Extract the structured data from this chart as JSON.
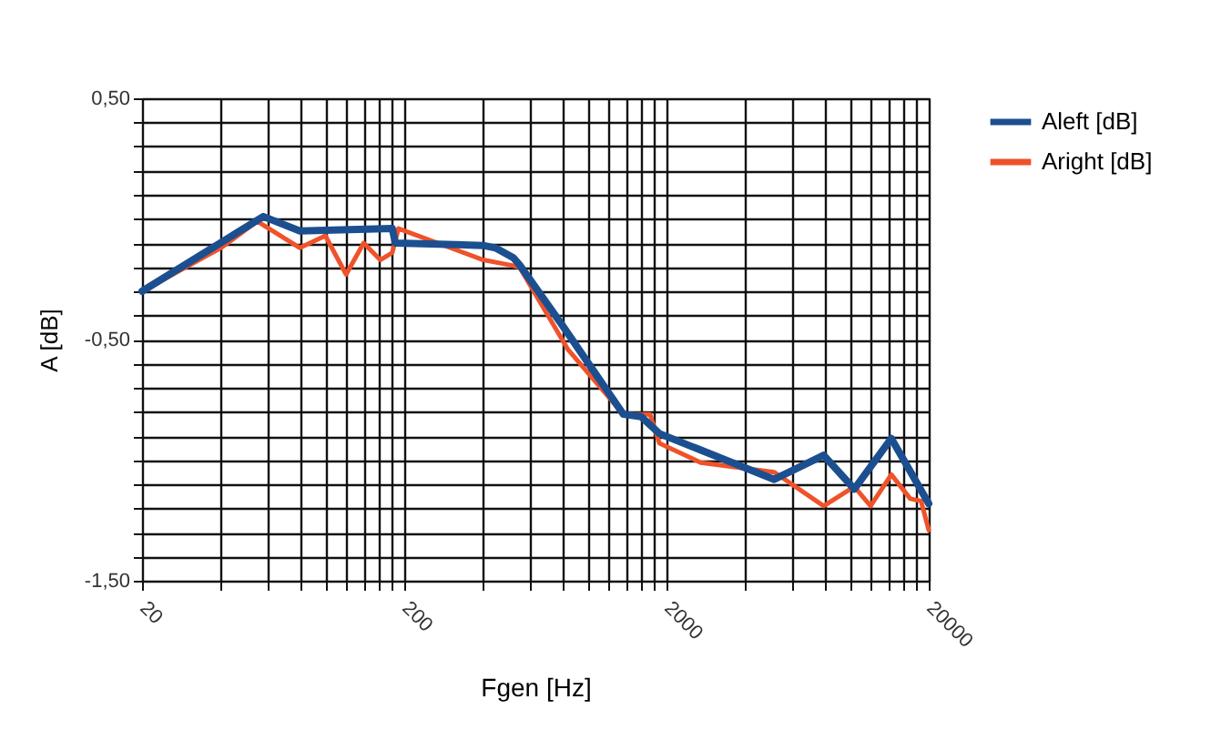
{
  "chart_data": {
    "type": "line",
    "xlabel": "Fgen [Hz]",
    "ylabel": "A [dB]",
    "log": "x",
    "grid": true,
    "legend": "right",
    "marker": "none",
    "line_style": "solid",
    "xlim": [
      20,
      20000
    ],
    "ylim": [
      -1.5,
      0.5
    ],
    "xticks": [
      20,
      {
        "value": 40,
        "label": null
      },
      {
        "value": 60,
        "label": null
      },
      {
        "value": 80,
        "label": null
      },
      {
        "value": 100,
        "label": null
      },
      {
        "value": 120,
        "label": null
      },
      {
        "value": 140,
        "label": null
      },
      {
        "value": 160,
        "label": null
      },
      {
        "value": 180,
        "label": null
      },
      200,
      {
        "value": 400,
        "label": null
      },
      {
        "value": 600,
        "label": null
      },
      {
        "value": 800,
        "label": null
      },
      {
        "value": 1000,
        "label": null
      },
      {
        "value": 1200,
        "label": null
      },
      {
        "value": 1400,
        "label": null
      },
      {
        "value": 1600,
        "label": null
      },
      {
        "value": 1800,
        "label": null
      },
      2000,
      {
        "value": 4000,
        "label": null
      },
      {
        "value": 6000,
        "label": null
      },
      {
        "value": 8000,
        "label": null
      },
      {
        "value": 10000,
        "label": null
      },
      {
        "value": 12000,
        "label": null
      },
      {
        "value": 14000,
        "label": null
      },
      {
        "value": 16000,
        "label": null
      },
      {
        "value": 18000,
        "label": null
      },
      20000
    ],
    "yticks": [
      {
        "value": -1.5,
        "label": "-1,50"
      },
      {
        "value": -1.4,
        "label": null
      },
      {
        "value": -1.3,
        "label": null
      },
      {
        "value": -1.2,
        "label": null
      },
      {
        "value": -1.1,
        "label": null
      },
      {
        "value": -1.0,
        "label": null
      },
      {
        "value": -0.9,
        "label": null
      },
      {
        "value": -0.8,
        "label": null
      },
      {
        "value": -0.7,
        "label": null
      },
      {
        "value": -0.6,
        "label": null
      },
      {
        "value": -0.5,
        "label": "-0,50"
      },
      {
        "value": -0.4,
        "label": null
      },
      {
        "value": -0.3,
        "label": null
      },
      {
        "value": -0.2,
        "label": null
      },
      {
        "value": -0.1,
        "label": null
      },
      {
        "value": 0,
        "label": null
      },
      {
        "value": 0.1,
        "label": null
      },
      {
        "value": 0.2,
        "label": null
      },
      {
        "value": 0.3,
        "label": null
      },
      {
        "value": 0.4,
        "label": null
      },
      {
        "value": 0.5,
        "label": "0,50"
      }
    ],
    "series": [
      {
        "name": "Aleft [dB]",
        "color": "#1c4f8f",
        "x": [
          20,
          58,
          80,
          180,
          185,
          400,
          445,
          520,
          550,
          800,
          1370,
          1600,
          1880,
          5150,
          7950,
          10400,
          14400,
          20000
        ],
        "values": [
          -0.3,
          0.01,
          -0.05,
          -0.04,
          -0.1,
          -0.11,
          -0.12,
          -0.16,
          -0.19,
          -0.44,
          -0.81,
          -0.82,
          -0.89,
          -1.08,
          -0.98,
          -1.12,
          -0.91,
          -1.18
        ]
      },
      {
        "name": "Aright [dB]",
        "color": "#f0522a",
        "x": [
          20,
          40,
          55,
          80,
          100,
          120,
          140,
          162,
          180,
          190,
          400,
          500,
          550,
          840,
          1370,
          1730,
          1880,
          2700,
          5150,
          7950,
          10400,
          12000,
          14400,
          17000,
          18700,
          20000
        ],
        "values": [
          -0.3,
          -0.12,
          -0.01,
          -0.12,
          -0.07,
          -0.23,
          -0.1,
          -0.17,
          -0.14,
          -0.04,
          -0.17,
          -0.19,
          -0.2,
          -0.54,
          -0.81,
          -0.81,
          -0.93,
          -1.01,
          -1.05,
          -1.19,
          -1.11,
          -1.19,
          -1.06,
          -1.16,
          -1.17,
          -1.29
        ]
      }
    ]
  }
}
